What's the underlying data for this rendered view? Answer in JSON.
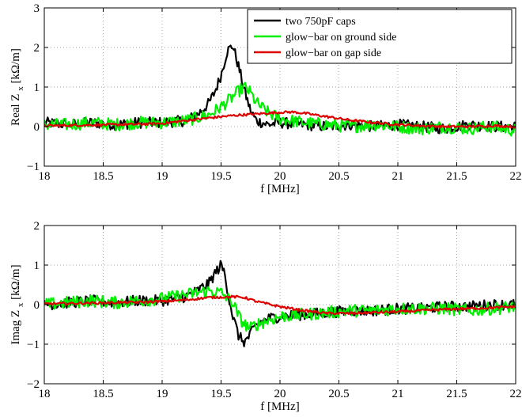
{
  "chart_data": [
    {
      "type": "line",
      "xlabel": "f [MHz]",
      "ylabel": "Real Z",
      "ylabel_subscript": "x",
      "ylabel_unit": "[kΩ/m]",
      "xlim": [
        18,
        22
      ],
      "ylim": [
        -1,
        3
      ],
      "xticks": [
        18,
        18.5,
        19,
        19.5,
        20,
        20.5,
        21,
        21.5,
        22
      ],
      "xtick_labels": [
        "18",
        "18.5",
        "19",
        "19.5",
        "20",
        "20.5",
        "21",
        "21.5",
        "22"
      ],
      "yticks": [
        -1,
        0,
        1,
        2,
        3
      ],
      "ytick_labels": [
        "−1",
        "0",
        "1",
        "2",
        "3"
      ],
      "grid": true,
      "legend_position": "top-right",
      "series": [
        {
          "name": "two 750pF caps",
          "color": "#000000",
          "x": [
            18,
            18.2,
            18.4,
            18.6,
            18.8,
            19,
            19.2,
            19.3,
            19.4,
            19.45,
            19.5,
            19.55,
            19.6,
            19.65,
            19.7,
            19.75,
            19.8,
            19.9,
            20,
            20.2,
            20.4,
            20.6,
            20.8,
            21,
            21.2,
            21.4,
            21.6,
            21.8,
            22
          ],
          "y": [
            0.1,
            0.05,
            0.1,
            0.05,
            0.1,
            0.1,
            0.15,
            0.3,
            0.6,
            0.9,
            1.3,
            1.9,
            2.05,
            1.5,
            0.9,
            0.4,
            0.15,
            0.05,
            0.1,
            0.05,
            0.0,
            0.05,
            0.0,
            0.05,
            0.0,
            -0.05,
            0.05,
            0.0,
            0.0
          ]
        },
        {
          "name": "glow−bar on ground side",
          "color": "#00ee00",
          "x": [
            18,
            18.2,
            18.4,
            18.6,
            18.8,
            19,
            19.2,
            19.4,
            19.5,
            19.6,
            19.65,
            19.7,
            19.75,
            19.8,
            19.9,
            20,
            20.2,
            20.4,
            20.6,
            20.8,
            21,
            21.2,
            21.4,
            21.6,
            21.8,
            22
          ],
          "y": [
            0.05,
            0.05,
            0.1,
            0.05,
            0.1,
            0.1,
            0.15,
            0.3,
            0.5,
            0.75,
            0.9,
            1.0,
            0.85,
            0.6,
            0.35,
            0.2,
            0.1,
            0.05,
            0.0,
            0.05,
            0.0,
            -0.05,
            0.0,
            -0.05,
            0.0,
            -0.1
          ]
        },
        {
          "name": "glow−bar on gap side",
          "color": "#dd0000",
          "x": [
            18,
            18.4,
            18.8,
            19,
            19.2,
            19.4,
            19.6,
            19.8,
            20,
            20.1,
            20.2,
            20.4,
            20.6,
            20.8,
            21,
            21.2,
            21.4,
            21.6,
            21.8,
            22
          ],
          "y": [
            0.02,
            0.04,
            0.06,
            0.08,
            0.15,
            0.22,
            0.28,
            0.32,
            0.36,
            0.37,
            0.34,
            0.25,
            0.16,
            0.1,
            0.05,
            0.02,
            0.0,
            0.0,
            0.02,
            0.0
          ]
        }
      ]
    },
    {
      "type": "line",
      "xlabel": "f [MHz]",
      "ylabel": "Imag Z",
      "ylabel_subscript": "x",
      "ylabel_unit": "[kΩ/m]",
      "xlim": [
        18,
        22
      ],
      "ylim": [
        -2,
        2
      ],
      "xticks": [
        18,
        18.5,
        19,
        19.5,
        20,
        20.5,
        21,
        21.5,
        22
      ],
      "xtick_labels": [
        "18",
        "18.5",
        "19",
        "19.5",
        "20",
        "20.5",
        "21",
        "21.5",
        "22"
      ],
      "yticks": [
        -2,
        -1,
        0,
        1,
        2
      ],
      "ytick_labels": [
        "−2",
        "−1",
        "0",
        "1",
        "2"
      ],
      "grid": true,
      "series": [
        {
          "name": "two 750pF caps",
          "color": "#000000",
          "x": [
            18,
            18.2,
            18.4,
            18.6,
            18.8,
            19,
            19.2,
            19.3,
            19.4,
            19.45,
            19.5,
            19.53,
            19.56,
            19.6,
            19.65,
            19.7,
            19.75,
            19.8,
            19.9,
            20,
            20.2,
            20.4,
            20.6,
            20.8,
            21,
            21.2,
            21.4,
            21.6,
            21.8,
            22
          ],
          "y": [
            0.0,
            0.05,
            0.1,
            0.05,
            0.1,
            0.1,
            0.2,
            0.35,
            0.55,
            0.8,
            1.0,
            0.8,
            0.3,
            -0.3,
            -0.8,
            -0.95,
            -0.75,
            -0.5,
            -0.35,
            -0.3,
            -0.25,
            -0.2,
            -0.15,
            -0.15,
            -0.1,
            -0.1,
            -0.05,
            -0.05,
            0.0,
            0.0
          ]
        },
        {
          "name": "glow−bar on ground side",
          "color": "#00ee00",
          "x": [
            18,
            18.2,
            18.4,
            18.6,
            18.8,
            19,
            19.2,
            19.4,
            19.5,
            19.6,
            19.65,
            19.7,
            19.75,
            19.8,
            19.9,
            20,
            20.2,
            20.4,
            20.6,
            20.8,
            21,
            21.2,
            21.4,
            21.6,
            21.8,
            22
          ],
          "y": [
            0.0,
            0.05,
            0.1,
            0.05,
            0.1,
            0.15,
            0.25,
            0.35,
            0.3,
            0.05,
            -0.3,
            -0.5,
            -0.6,
            -0.5,
            -0.4,
            -0.3,
            -0.25,
            -0.2,
            -0.15,
            -0.15,
            -0.1,
            -0.1,
            -0.1,
            -0.15,
            -0.1,
            -0.05
          ]
        },
        {
          "name": "glow−bar on gap side",
          "color": "#dd0000",
          "x": [
            18,
            18.4,
            18.8,
            19,
            19.2,
            19.4,
            19.6,
            19.7,
            19.8,
            20,
            20.2,
            20.4,
            20.6,
            20.8,
            21,
            21.2,
            21.4,
            21.6,
            21.8,
            22
          ],
          "y": [
            0.02,
            0.04,
            0.06,
            0.08,
            0.12,
            0.18,
            0.2,
            0.18,
            0.08,
            -0.05,
            -0.15,
            -0.22,
            -0.22,
            -0.2,
            -0.18,
            -0.15,
            -0.12,
            -0.1,
            -0.08,
            -0.05
          ]
        }
      ]
    }
  ]
}
